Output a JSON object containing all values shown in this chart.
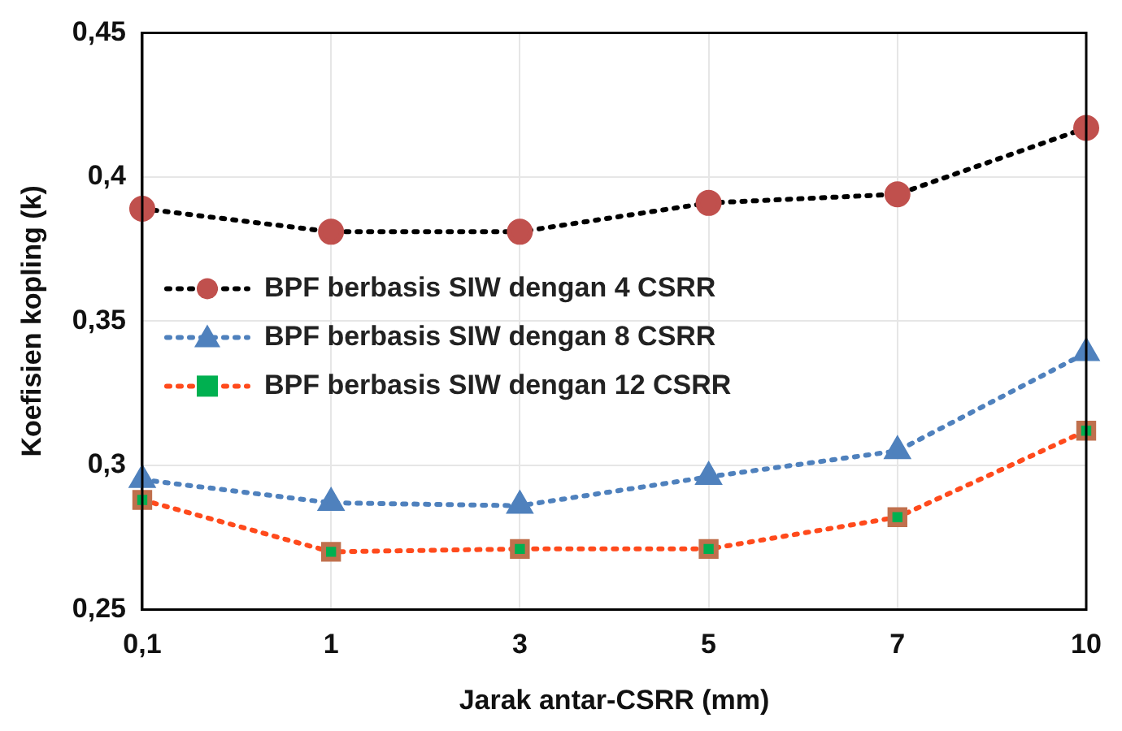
{
  "chart_data": {
    "type": "line",
    "xlabel": "Jarak antar-CSRR (mm)",
    "ylabel": "Koefisien kopling (k)",
    "categories": [
      "0,1",
      "1",
      "3",
      "5",
      "7",
      "10"
    ],
    "ylim": [
      0.25,
      0.45
    ],
    "yticks": [
      {
        "value": 0.25,
        "label": "0,25"
      },
      {
        "value": 0.3,
        "label": "0,3"
      },
      {
        "value": 0.35,
        "label": "0,35"
      },
      {
        "value": 0.4,
        "label": "0,4"
      },
      {
        "value": 0.45,
        "label": "0,45"
      }
    ],
    "grid": true,
    "legend": "left",
    "line_style": "dotted",
    "series": [
      {
        "name": "BPF berbasis SIW dengan 4 CSRR",
        "color": "#000000",
        "colors": [
          "#c0504d",
          "#c0504d",
          "#c0504d",
          "#c0504d",
          "#c0504d",
          "#c0504d"
        ],
        "marker": "circle",
        "values": [
          0.389,
          0.381,
          0.381,
          0.391,
          0.394,
          0.417
        ]
      },
      {
        "name": "BPF berbasis SIW dengan 8 CSRR",
        "color": "#4f81bd",
        "colors": [
          "#4f81bd",
          "#4f81bd",
          "#4f81bd",
          "#4f81bd",
          "#4f81bd",
          "#4f81bd"
        ],
        "marker": "triangle",
        "values": [
          0.295,
          0.287,
          0.286,
          0.296,
          0.305,
          0.339
        ]
      },
      {
        "name": "BPF berbasis SIW dengan 12 CSRR",
        "color": "#ff4a1c",
        "colors": [
          "#00b050",
          "#00b050",
          "#00b050",
          "#00b050",
          "#00b050",
          "#00b050"
        ],
        "marker": "square",
        "values": [
          0.288,
          0.27,
          0.271,
          0.271,
          0.282,
          0.312
        ]
      }
    ]
  }
}
